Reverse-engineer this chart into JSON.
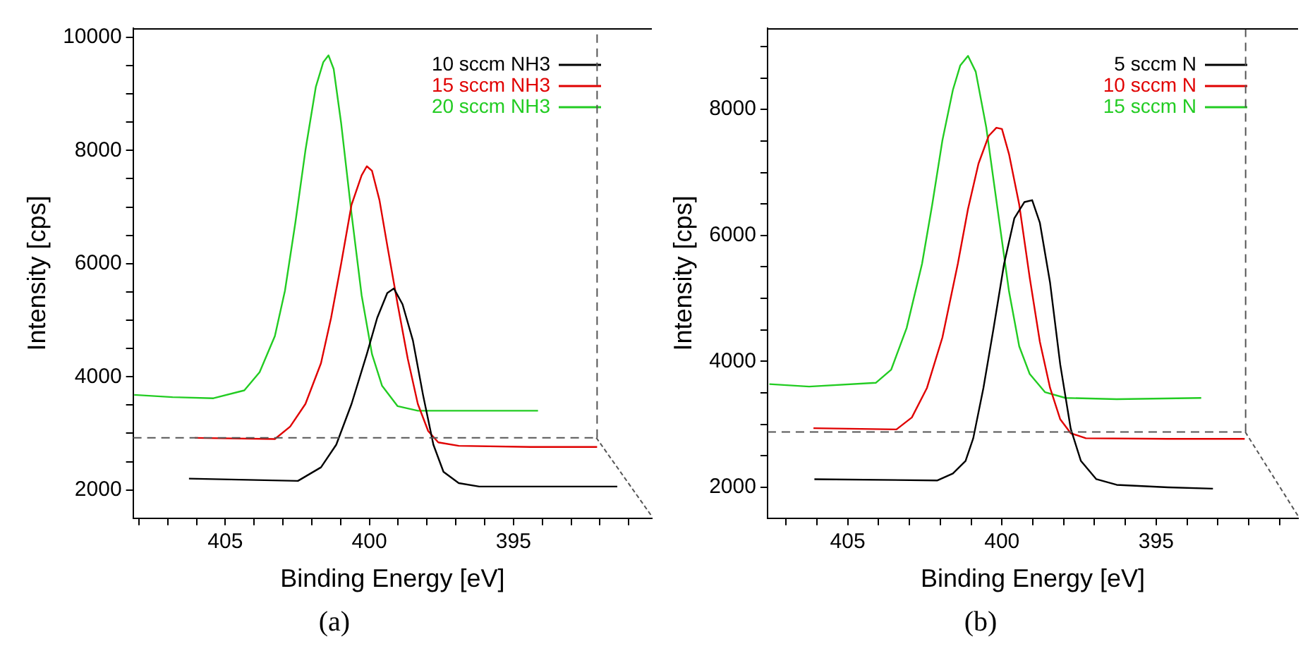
{
  "chart_data": [
    {
      "type": "line",
      "xlabel": "Binding Energy [eV]",
      "ylabel": "Intensity [cps]",
      "annotations": [
        "(a)"
      ],
      "legend": "top right",
      "marker": "none",
      "line_style": "solid",
      "grid": false,
      "xlim": [
        408.2,
        390.2
      ],
      "ref_lines": [
        {
          "axis": "y",
          "value": 2920,
          "color": "#555555",
          "line_style": "dashed"
        },
        {
          "axis": "x",
          "value": 392.1,
          "color": "#555555",
          "line_style": "dashed"
        }
      ],
      "ylim": [
        1500,
        10160
      ],
      "xticks": [
        {
          "value": 408,
          "label": null
        },
        {
          "value": 407,
          "label": null
        },
        {
          "value": 406,
          "label": null
        },
        405,
        {
          "value": 404,
          "label": null
        },
        {
          "value": 403,
          "label": null
        },
        {
          "value": 402,
          "label": null
        },
        {
          "value": 401,
          "label": null
        },
        400,
        {
          "value": 399,
          "label": null
        },
        {
          "value": 398,
          "label": null
        },
        {
          "value": 397,
          "label": null
        },
        {
          "value": 396,
          "label": null
        },
        395,
        {
          "value": 394,
          "label": null
        },
        {
          "value": 393,
          "label": null
        },
        {
          "value": 392,
          "label": null
        },
        {
          "value": 391,
          "label": null
        }
      ],
      "yticks": [
        2000,
        {
          "value": 2500,
          "label": null
        },
        {
          "value": 3000,
          "label": null
        },
        {
          "value": 3500,
          "label": null
        },
        4000,
        {
          "value": 4500,
          "label": null
        },
        {
          "value": 5000,
          "label": null
        },
        {
          "value": 5500,
          "label": null
        },
        6000,
        {
          "value": 6500,
          "label": null
        },
        {
          "value": 7000,
          "label": null
        },
        {
          "value": 7500,
          "label": null
        },
        8000,
        {
          "value": 8500,
          "label": null
        },
        {
          "value": 9000,
          "label": null
        },
        {
          "value": 9500,
          "label": null
        },
        10000
      ],
      "series": [
        {
          "name": "10 sccm NH3",
          "color": "#000000",
          "x": [
            406.26,
            402.48,
            401.68,
            401.15,
            400.62,
            400.09,
            399.73,
            399.38,
            399.15,
            398.85,
            398.49,
            398.14,
            397.78,
            397.43,
            396.9,
            396.19,
            394.41,
            391.4
          ],
          "values": [
            2200,
            2160,
            2400,
            2800,
            3520,
            4400,
            5040,
            5480,
            5560,
            5280,
            4640,
            3680,
            2800,
            2320,
            2120,
            2060,
            2060,
            2060
          ]
        },
        {
          "name": "15 sccm NH3",
          "color": "#e00000",
          "x": [
            406.06,
            403.28,
            402.75,
            402.22,
            401.68,
            401.33,
            400.98,
            400.62,
            400.27,
            400.09,
            399.91,
            399.65,
            399.38,
            399.02,
            398.67,
            398.32,
            397.96,
            397.61,
            396.9,
            394.41,
            392.1
          ],
          "values": [
            2920,
            2900,
            3120,
            3520,
            4240,
            5040,
            6000,
            7040,
            7560,
            7720,
            7640,
            7120,
            6320,
            5280,
            4320,
            3520,
            3040,
            2840,
            2780,
            2760,
            2760
          ]
        },
        {
          "name": "20 sccm NH3",
          "color": "#22cc22",
          "x": [
            408.16,
            406.83,
            405.41,
            404.34,
            403.81,
            403.28,
            402.93,
            402.57,
            402.22,
            401.86,
            401.6,
            401.42,
            401.24,
            400.98,
            400.62,
            400.27,
            399.91,
            399.56,
            399.02,
            398.32,
            396.19,
            394.15
          ],
          "values": [
            3680,
            3640,
            3620,
            3760,
            4080,
            4720,
            5520,
            6720,
            8000,
            9120,
            9560,
            9680,
            9440,
            8480,
            6880,
            5440,
            4400,
            3840,
            3480,
            3400,
            3400,
            3400
          ]
        }
      ]
    },
    {
      "type": "line",
      "xlabel": "Binding Energy [eV]",
      "ylabel": "Intensity [cps]",
      "annotations": [
        "(b)"
      ],
      "legend": "top right",
      "marker": "none",
      "line_style": "solid",
      "grid": false,
      "xlim": [
        407.6,
        390.4
      ],
      "ref_lines": [
        {
          "axis": "y",
          "value": 2880,
          "color": "#555555",
          "line_style": "dashed"
        },
        {
          "axis": "x",
          "value": 392.1,
          "color": "#555555",
          "line_style": "dashed"
        }
      ],
      "ylim": [
        1510,
        9290
      ],
      "xticks": [
        {
          "value": 407,
          "label": null
        },
        {
          "value": 406,
          "label": null
        },
        405,
        {
          "value": 404,
          "label": null
        },
        {
          "value": 403,
          "label": null
        },
        {
          "value": 402,
          "label": null
        },
        {
          "value": 401,
          "label": null
        },
        400,
        {
          "value": 399,
          "label": null
        },
        {
          "value": 398,
          "label": null
        },
        {
          "value": 397,
          "label": null
        },
        {
          "value": 396,
          "label": null
        },
        395,
        {
          "value": 394,
          "label": null
        },
        {
          "value": 393,
          "label": null
        },
        {
          "value": 392,
          "label": null
        },
        {
          "value": 391,
          "label": null
        }
      ],
      "yticks": [
        2000,
        {
          "value": 2500,
          "label": null
        },
        {
          "value": 3000,
          "label": null
        },
        {
          "value": 3500,
          "label": null
        },
        4000,
        {
          "value": 4500,
          "label": null
        },
        {
          "value": 5000,
          "label": null
        },
        {
          "value": 5500,
          "label": null
        },
        6000,
        {
          "value": 6500,
          "label": null
        },
        {
          "value": 7000,
          "label": null
        },
        {
          "value": 7500,
          "label": null
        },
        8000,
        {
          "value": 8500,
          "label": null
        },
        {
          "value": 9000,
          "label": null
        }
      ],
      "series": [
        {
          "name": "5 sccm N",
          "color": "#000000",
          "x": [
            406.08,
            402.09,
            401.59,
            401.18,
            400.93,
            400.6,
            400.27,
            399.93,
            399.6,
            399.27,
            399.02,
            398.77,
            398.44,
            398.11,
            397.77,
            397.44,
            396.94,
            396.28,
            394.62,
            393.16
          ],
          "values": [
            2130,
            2110,
            2220,
            2420,
            2780,
            3580,
            4530,
            5550,
            6270,
            6530,
            6560,
            6200,
            5250,
            3950,
            2930,
            2420,
            2130,
            2040,
            2000,
            1980
          ]
        },
        {
          "name": "10 sccm N",
          "color": "#e00000",
          "x": [
            406.11,
            403.42,
            402.92,
            402.43,
            401.93,
            401.43,
            401.1,
            400.76,
            400.43,
            400.18,
            400.0,
            399.77,
            399.44,
            399.1,
            398.77,
            398.44,
            398.11,
            397.77,
            397.28,
            394.62,
            392.13
          ],
          "values": [
            2940,
            2920,
            3110,
            3580,
            4380,
            5550,
            6420,
            7140,
            7580,
            7710,
            7690,
            7290,
            6490,
            5330,
            4310,
            3580,
            3080,
            2860,
            2780,
            2770,
            2770
          ]
        },
        {
          "name": "15 sccm N",
          "color": "#22cc22",
          "x": [
            407.54,
            406.25,
            404.09,
            403.59,
            403.09,
            402.59,
            402.26,
            401.93,
            401.59,
            401.35,
            401.1,
            400.85,
            400.51,
            400.1,
            399.77,
            399.44,
            399.1,
            398.6,
            397.94,
            396.28,
            393.54
          ],
          "values": [
            3640,
            3600,
            3660,
            3870,
            4530,
            5550,
            6490,
            7510,
            8310,
            8700,
            8850,
            8600,
            7720,
            6270,
            5110,
            4240,
            3800,
            3510,
            3420,
            3400,
            3420
          ]
        }
      ]
    }
  ]
}
